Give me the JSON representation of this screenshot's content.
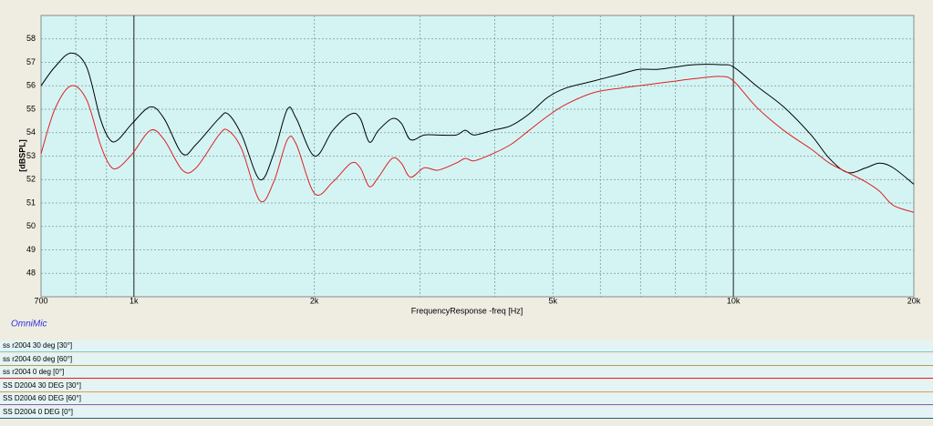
{
  "chart_data": {
    "type": "line",
    "xlabel": "FrequencyResponse -freq [Hz]",
    "ylabel": "[dBSPL]",
    "watermark": "OmniMic",
    "log_x": true,
    "grid": true,
    "xlim": [
      700,
      20000
    ],
    "ylim": [
      47,
      59
    ],
    "yticks": [
      48,
      49,
      50,
      51,
      52,
      53,
      54,
      55,
      56,
      57,
      58
    ],
    "xticks": [
      700,
      {
        "value": 1000,
        "label": "1k"
      },
      {
        "value": 2000,
        "label": "2k"
      },
      {
        "value": 5000,
        "label": "5k"
      },
      {
        "value": 10000,
        "label": "10k"
      },
      {
        "value": 20000,
        "label": "20k"
      }
    ],
    "xminorticks": [
      800,
      900,
      3000,
      4000,
      6000,
      7000,
      8000,
      9000
    ],
    "xmajorgrid": [
      1000,
      10000
    ],
    "x": [
      700,
      738,
      786,
      834,
      879,
      912,
      941,
      994,
      1066,
      1123,
      1205,
      1270,
      1386,
      1435,
      1513,
      1622,
      1711,
      1803,
      1866,
      2002,
      2147,
      2303,
      2386,
      2470,
      2558,
      2696,
      2793,
      2893,
      3049,
      3214,
      3447,
      3570,
      3697,
      3966,
      4256,
      4564,
      4896,
      5251,
      5833,
      6479,
      6950,
      7455,
      7997,
      8578,
      9528,
      10010,
      10920,
      12130,
      13480,
      14460,
      15510,
      16630,
      17530,
      18480,
      20000
    ],
    "series": [
      {
        "color": "#000000",
        "values": [
          56.0,
          56.8,
          57.4,
          56.8,
          54.6,
          53.7,
          53.7,
          54.4,
          55.1,
          54.6,
          53.1,
          53.5,
          54.6,
          54.8,
          53.9,
          52.0,
          53.1,
          55.0,
          54.6,
          53.0,
          54.1,
          54.8,
          54.6,
          53.6,
          54.1,
          54.6,
          54.4,
          53.7,
          53.9,
          53.9,
          53.9,
          54.1,
          53.9,
          54.1,
          54.3,
          54.8,
          55.5,
          55.9,
          56.2,
          56.5,
          56.7,
          56.7,
          56.8,
          56.9,
          56.9,
          56.8,
          56.0,
          55.1,
          53.9,
          52.9,
          52.3,
          52.5,
          52.7,
          52.5,
          51.8
        ]
      },
      {
        "color": "#e02020",
        "values": [
          53.1,
          55.0,
          56.0,
          55.4,
          53.5,
          52.6,
          52.5,
          53.1,
          54.1,
          53.7,
          52.4,
          52.5,
          53.9,
          54.1,
          53.3,
          51.1,
          51.9,
          53.7,
          53.5,
          51.4,
          51.9,
          52.7,
          52.5,
          51.7,
          52.1,
          52.9,
          52.7,
          52.1,
          52.5,
          52.4,
          52.7,
          52.9,
          52.8,
          53.1,
          53.5,
          54.1,
          54.7,
          55.2,
          55.7,
          55.9,
          56.0,
          56.1,
          56.2,
          56.3,
          56.4,
          56.2,
          55.1,
          54.1,
          53.3,
          52.7,
          52.3,
          51.9,
          51.5,
          50.9,
          50.6
        ]
      }
    ]
  },
  "traces": [
    {
      "name": "ss r2004 30 deg [30°]",
      "color": "#7fc8c8"
    },
    {
      "name": "ss r2004 60 deg [60°]",
      "color": "#b0a060"
    },
    {
      "name": "ss r2004 0 deg [0°]",
      "color": "#e02020"
    },
    {
      "name": "SS D2004 30 DEG [30°]",
      "color": "#d8a060"
    },
    {
      "name": "SS D2004 60 DEG [60°]",
      "color": "#8060c0"
    },
    {
      "name": "SS D2004 0 DEG [0°]",
      "color": "#206070"
    }
  ]
}
